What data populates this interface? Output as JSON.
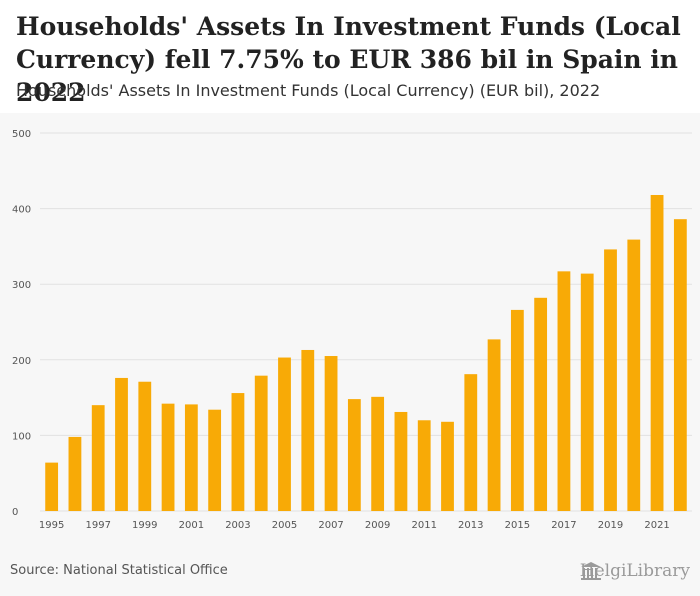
{
  "header": {
    "title": "Households' Assets In Investment Funds (Local Currency) fell 7.75% to EUR 386 bil in Spain in 2022",
    "subtitle": "Households' Assets In Investment Funds (Local Currency) (EUR bil), 2022"
  },
  "footer": {
    "source": "Source: National Statistical Office",
    "brand": "HelgiLibrary"
  },
  "colors": {
    "bar": "#f8aa06",
    "grid": "#e2e2e2",
    "axis_text": "#555555"
  },
  "chart_data": {
    "type": "bar",
    "title": "Households' Assets In Investment Funds (Local Currency) fell 7.75% to EUR 386 bil in Spain in 2022",
    "subtitle": "Households' Assets In Investment Funds (Local Currency) (EUR bil), 2022",
    "xlabel": "",
    "ylabel": "",
    "categories": [
      "1995",
      "1996",
      "1997",
      "1998",
      "1999",
      "2000",
      "2001",
      "2002",
      "2003",
      "2004",
      "2005",
      "2006",
      "2007",
      "2008",
      "2009",
      "2010",
      "2011",
      "2012",
      "2013",
      "2014",
      "2015",
      "2016",
      "2017",
      "2018",
      "2019",
      "2020",
      "2021",
      "2022"
    ],
    "values": [
      64,
      98,
      140,
      176,
      171,
      142,
      141,
      134,
      156,
      179,
      203,
      213,
      205,
      148,
      151,
      131,
      120,
      118,
      181,
      227,
      266,
      282,
      317,
      314,
      346,
      359,
      418,
      386
    ],
    "x_tick_labels": [
      "1995",
      "1997",
      "1999",
      "2001",
      "2003",
      "2005",
      "2007",
      "2009",
      "2011",
      "2013",
      "2015",
      "2017",
      "2019",
      "2021"
    ],
    "y_ticks": [
      0,
      100,
      200,
      300,
      400,
      500
    ],
    "ylim": [
      0,
      500
    ],
    "grid": true,
    "legend": "none"
  }
}
